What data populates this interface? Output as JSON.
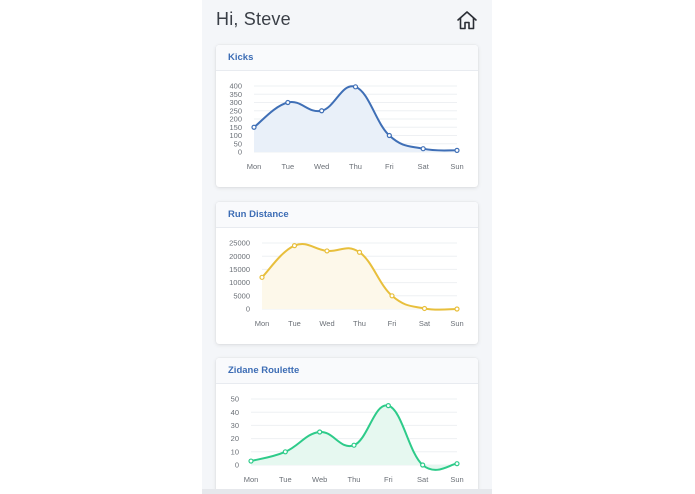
{
  "header": {
    "greeting": "Hi, Steve",
    "home_icon": "home-icon"
  },
  "cards": [
    {
      "title": "Kicks",
      "color": "#3f6fb6",
      "fill": "#e9f0f9"
    },
    {
      "title": "Run Distance",
      "color": "#e8bf3c",
      "fill": "#fdf8ea"
    },
    {
      "title": "Zidane Roulette",
      "color": "#2ecb8a",
      "fill": "#e6f8f0"
    }
  ],
  "chart_data": [
    {
      "type": "line",
      "title": "Kicks",
      "categories": [
        "Mon",
        "Tue",
        "Wed",
        "Thu",
        "Fri",
        "Sat",
        "Sun"
      ],
      "series": [
        {
          "values": [
            150,
            300,
            250,
            395,
            100,
            20,
            10
          ]
        }
      ],
      "yticks": [
        400,
        350,
        300,
        250,
        200,
        150,
        100,
        50,
        0
      ],
      "ylim": [
        0,
        400
      ],
      "grid": true
    },
    {
      "type": "line",
      "title": "Run Distance",
      "categories": [
        "Mon",
        "Tue",
        "Wed",
        "Thu",
        "Fri",
        "Sat",
        "Sun"
      ],
      "series": [
        {
          "values": [
            12000,
            24000,
            22000,
            21500,
            5000,
            200,
            0
          ]
        }
      ],
      "yticks": [
        25000,
        20000,
        15000,
        10000,
        5000,
        0
      ],
      "ylim": [
        0,
        25000
      ],
      "grid": true
    },
    {
      "type": "line",
      "title": "Zidane Roulette",
      "categories": [
        "Mon",
        "Tue",
        "Web",
        "Thu",
        "Fri",
        "Sat",
        "Sun"
      ],
      "series": [
        {
          "values": [
            3,
            10,
            25,
            15,
            45,
            0,
            1
          ]
        }
      ],
      "yticks": [
        50,
        40,
        30,
        20,
        10,
        0
      ],
      "ylim": [
        0,
        50
      ],
      "grid": true
    }
  ]
}
